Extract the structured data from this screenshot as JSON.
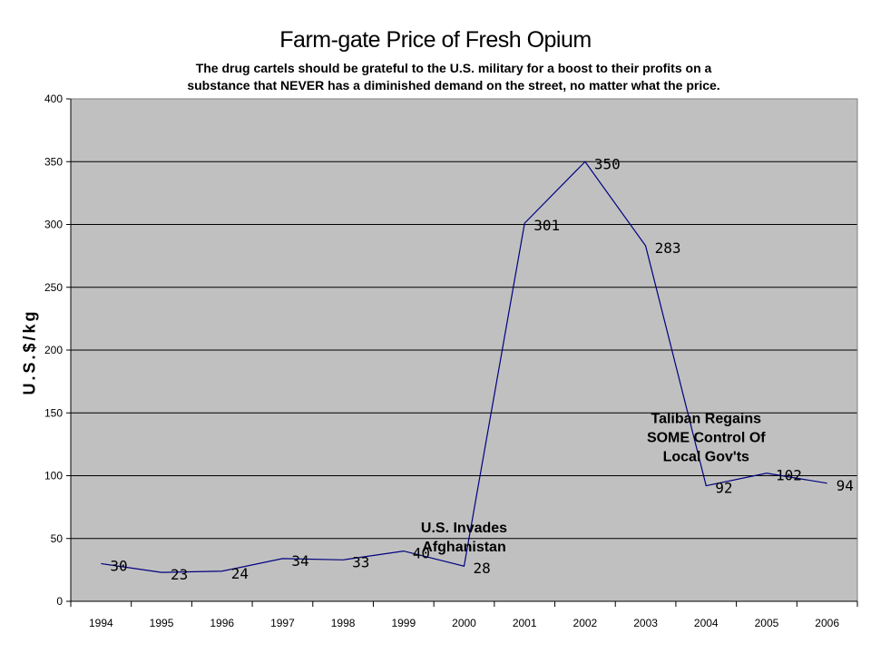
{
  "chart_data": {
    "type": "line",
    "title": "Farm-gate Price of Fresh Opium",
    "subtitle_lines": [
      "The drug cartels should be grateful to the U.S. military for a boost to their profits on a",
      "substance that NEVER has a diminished demand on the street, no matter what the price."
    ],
    "xlabel": "",
    "ylabel": "U.S.$/kg",
    "categories": [
      "1994",
      "1995",
      "1996",
      "1997",
      "1998",
      "1999",
      "2000",
      "2001",
      "2002",
      "2003",
      "2004",
      "2005",
      "2006"
    ],
    "values": [
      30,
      23,
      24,
      34,
      33,
      40,
      28,
      301,
      350,
      283,
      92,
      102,
      94
    ],
    "data_labels": [
      "30",
      "23",
      "24",
      "34",
      "33",
      "40",
      "28",
      "301",
      "350",
      "283",
      "92",
      "102",
      "94"
    ],
    "ylim": [
      0,
      400
    ],
    "yticks": [
      0,
      50,
      100,
      150,
      200,
      250,
      300,
      350,
      400
    ],
    "grid": true,
    "legend": "none",
    "annotations": [
      {
        "lines": [
          "U.S. Invades",
          "Afghanistan"
        ],
        "x": "2000",
        "y": 55
      },
      {
        "lines": [
          "Taliban Regains",
          "SOME Control Of",
          "Local Gov'ts"
        ],
        "x": "2004",
        "y": 142
      }
    ],
    "colors": {
      "plot_area": "#c0c0c0",
      "line": "#000080",
      "grid": "#000000",
      "label": "#000000"
    }
  }
}
